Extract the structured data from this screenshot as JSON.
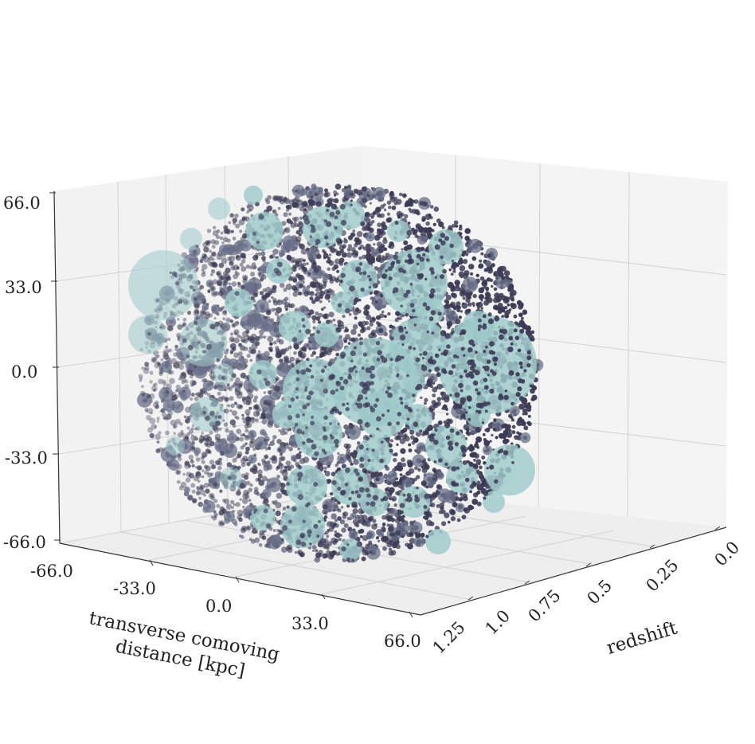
{
  "chart_data": {
    "type": "scatter",
    "projection": "3d",
    "title": "",
    "z_axis": {
      "label": "",
      "ticks": [
        "66.0",
        "33.0",
        "0.0",
        "-33.0",
        "-66.0"
      ],
      "range": [
        -66,
        66
      ]
    },
    "x_axis": {
      "label_line1": "transverse comoving",
      "label_line2": "distance [kpc]",
      "ticks": [
        "-66.0",
        "-33.0",
        "0.0",
        "33.0",
        "66.0"
      ],
      "range": [
        -66,
        66
      ]
    },
    "y_axis": {
      "label": "redshift",
      "ticks": [
        "1.25",
        "1.0",
        "0.75",
        "0.5",
        "0.25",
        "0.0"
      ],
      "range": [
        1.25,
        0.0
      ]
    },
    "grid": true,
    "pane_color": "#f0f0f0",
    "series": [
      {
        "kind": "small-points",
        "color": "#3c3b55",
        "approx_count": 4500,
        "distribution": "uniform within sphere of radius 66 kpc"
      },
      {
        "kind": "large-spheres",
        "color": "#9fc9c9",
        "approx_count": 70,
        "distribution": "clustered bubbles inside the same sphere"
      }
    ]
  }
}
